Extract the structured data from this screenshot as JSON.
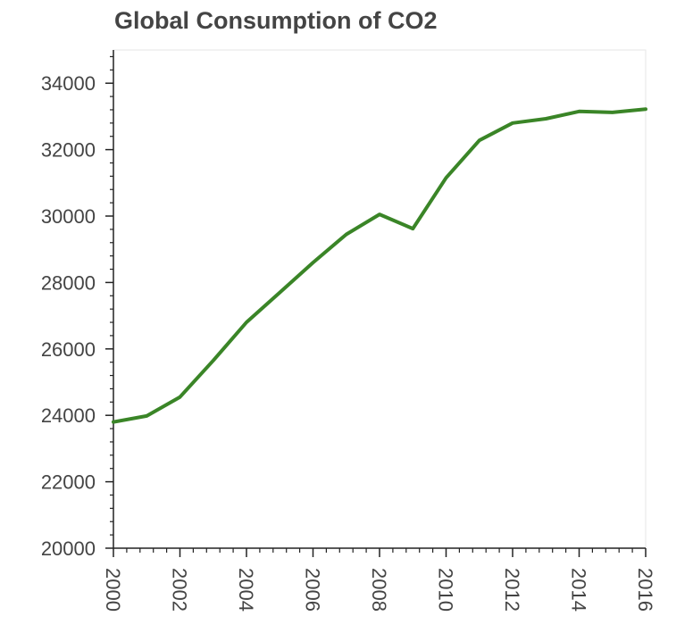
{
  "chart_data": {
    "type": "line",
    "title": "Global Consumption of CO2",
    "xlabel": "",
    "ylabel": "",
    "xlim": [
      2000,
      2016
    ],
    "ylim": [
      20000,
      35000
    ],
    "x_ticks": [
      2000,
      2002,
      2004,
      2006,
      2008,
      2010,
      2012,
      2014,
      2016
    ],
    "x_tick_labels": [
      "2000",
      "2002",
      "2004",
      "2006",
      "2008",
      "2010",
      "2012",
      "2014",
      "2016"
    ],
    "y_ticks": [
      20000,
      22000,
      24000,
      26000,
      28000,
      30000,
      32000,
      34000
    ],
    "y_tick_labels": [
      "20000",
      "22000",
      "24000",
      "26000",
      "28000",
      "30000",
      "32000",
      "34000"
    ],
    "grid": false,
    "series": [
      {
        "color": "#3a8527",
        "x": [
          2000,
          2001,
          2002,
          2003,
          2004,
          2005,
          2006,
          2007,
          2008,
          2009,
          2010,
          2011,
          2012,
          2013,
          2014,
          2015,
          2016
        ],
        "values": [
          23800,
          23980,
          24550,
          25650,
          26800,
          27700,
          28600,
          29450,
          30050,
          29620,
          31150,
          32280,
          32800,
          32930,
          33150,
          33120,
          33220
        ]
      }
    ]
  }
}
